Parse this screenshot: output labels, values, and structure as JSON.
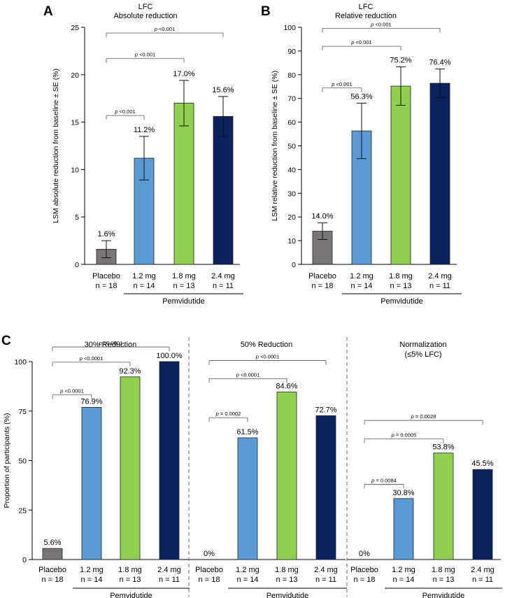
{
  "colors": {
    "placebo": "#7a7474",
    "dose_1_2": "#5b9bd5",
    "dose_1_8": "#8fd14f",
    "dose_2_4": "#0b2160",
    "axis": "#000000",
    "bracket": "#555555",
    "divider": "#666666"
  },
  "chart_data": [
    {
      "id": "A",
      "type": "bar",
      "panel_letter": "A",
      "title": "LFC",
      "subtitle": "Absolute reduction",
      "ylabel": "LSM absolute reduction from baseline ± SE (%)",
      "ylim": [
        0,
        25
      ],
      "yticks": [
        "0",
        "5",
        "10",
        "15",
        "20",
        "25"
      ],
      "yticks_values": [
        0,
        5,
        10,
        15,
        20,
        25
      ],
      "categories": [
        "Placebo",
        "1.2 mg",
        "1.8 mg",
        "2.4 mg"
      ],
      "n_labels": [
        "n = 18",
        "n = 14",
        "n = 13",
        "n = 11"
      ],
      "values": [
        1.6,
        11.2,
        17.0,
        15.6
      ],
      "value_labels": [
        "1.6%",
        "11.2%",
        "17.0%",
        "15.6%"
      ],
      "error": [
        0.9,
        2.3,
        2.4,
        2.1
      ],
      "group_label": "Pemvidutide",
      "comparisons": [
        {
          "from": 0,
          "to": 1,
          "label": "p <0.001",
          "level": 15.7
        },
        {
          "from": 0,
          "to": 2,
          "label": "p <0.001",
          "level": 21.7
        },
        {
          "from": 0,
          "to": 3,
          "label": "p <0.001",
          "level": 24.4
        }
      ]
    },
    {
      "id": "B",
      "type": "bar",
      "panel_letter": "B",
      "title": "LFC",
      "subtitle": "Relative reduction",
      "ylabel": "LSM relative reduction from baseline ± SE (%)",
      "ylim": [
        0,
        100
      ],
      "yticks": [
        "0",
        "10",
        "20",
        "30",
        "40",
        "50",
        "60",
        "70",
        "80",
        "90",
        "100"
      ],
      "yticks_values": [
        0,
        10,
        20,
        30,
        40,
        50,
        60,
        70,
        80,
        90,
        100
      ],
      "categories": [
        "Placebo",
        "1.2 mg",
        "1.8 mg",
        "2.4 mg"
      ],
      "n_labels": [
        "n = 18",
        "n = 14",
        "n = 13",
        "n = 11"
      ],
      "values": [
        14.0,
        56.3,
        75.2,
        76.4
      ],
      "value_labels": [
        "14.0%",
        "56.3%",
        "75.2%",
        "76.4%"
      ],
      "error": [
        3.5,
        11.7,
        8.1,
        6.0
      ],
      "group_label": "Pemvidutide",
      "comparisons": [
        {
          "from": 0,
          "to": 1,
          "label": "p <0.001",
          "level": 74.4
        },
        {
          "from": 0,
          "to": 2,
          "label": "p <0.001",
          "level": 92.0
        },
        {
          "from": 0,
          "to": 3,
          "label": "p <0.001",
          "level": 99.6
        }
      ]
    },
    {
      "id": "C1",
      "type": "bar",
      "panel_letter": "C",
      "title": "30% Reduction",
      "subtitle": "",
      "ylabel": "Proportion of participants (%)",
      "ylim": [
        0,
        100
      ],
      "yticks": [
        "0",
        "25",
        "50",
        "75",
        "100"
      ],
      "yticks_values": [
        0,
        25,
        50,
        75,
        100
      ],
      "categories": [
        "Placebo",
        "1.2 mg",
        "1.8 mg",
        "2.4 mg"
      ],
      "n_labels": [
        "n = 18",
        "n = 14",
        "n = 13",
        "n = 11"
      ],
      "values": [
        5.6,
        76.9,
        92.3,
        100.0
      ],
      "value_labels": [
        "5.6%",
        "76.9%",
        "92.3%",
        "100.0%"
      ],
      "group_label": "Pemvidutide",
      "comparisons": [
        {
          "from": 0,
          "to": 1,
          "label": "p <0.0001",
          "level": 83.3
        },
        {
          "from": 0,
          "to": 2,
          "label": "p <0.0001",
          "level": 99.7
        },
        {
          "from": 0,
          "to": 3,
          "label": "p <0.0001",
          "level": 107.4
        }
      ]
    },
    {
      "id": "C2",
      "type": "bar",
      "title": "50% Reduction",
      "subtitle": "",
      "ylim": [
        0,
        100
      ],
      "categories": [
        "Placebo",
        "1.2 mg",
        "1.8 mg",
        "2.4 mg"
      ],
      "n_labels": [
        "n = 18",
        "n = 14",
        "n = 13",
        "n = 11"
      ],
      "values": [
        0,
        61.5,
        84.6,
        72.7
      ],
      "value_labels": [
        "0%",
        "61.5%",
        "84.6%",
        "72.7%"
      ],
      "group_label": "Pemvidutide",
      "comparisons": [
        {
          "from": 0,
          "to": 1,
          "label": "p = 0.0002",
          "level": 71.7
        },
        {
          "from": 0,
          "to": 2,
          "label": "p <0.0001",
          "level": 91.4
        },
        {
          "from": 0,
          "to": 3,
          "label": "p <0.0001",
          "level": 100.5
        }
      ]
    },
    {
      "id": "C3",
      "type": "bar",
      "title": "Normalization",
      "subtitle": "(≤5% LFC)",
      "ylim": [
        0,
        100
      ],
      "categories": [
        "Placebo",
        "1.2 mg",
        "1.8 mg",
        "2.4 mg"
      ],
      "n_labels": [
        "n = 18",
        "n = 14",
        "n = 13",
        "n = 11"
      ],
      "values": [
        0,
        30.8,
        53.8,
        45.5
      ],
      "value_labels": [
        "0%",
        "30.8%",
        "53.8%",
        "45.5%"
      ],
      "group_label": "Pemvidutide",
      "comparisons": [
        {
          "from": 0,
          "to": 1,
          "label": "p = 0.0084",
          "level": 38.0
        },
        {
          "from": 0,
          "to": 2,
          "label": "p = 0.0005",
          "level": 60.9
        },
        {
          "from": 0,
          "to": 3,
          "label": "p = 0.0028",
          "level": 70.3
        }
      ]
    }
  ]
}
